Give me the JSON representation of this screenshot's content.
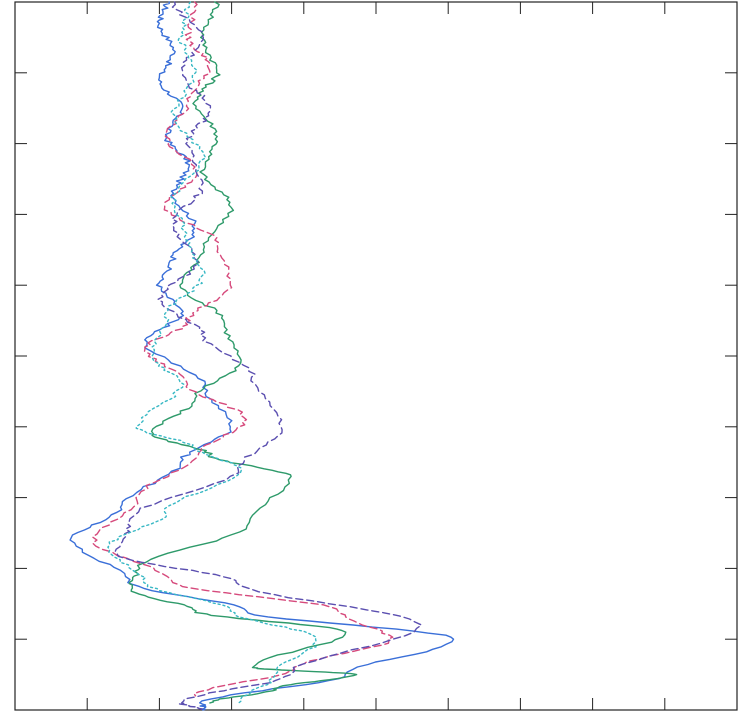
{
  "chart_data": {
    "type": "line",
    "orientation": "vertical-profile",
    "title": "",
    "xlabel": "",
    "ylabel": "",
    "xlim": [
      0,
      10
    ],
    "ylim": [
      0,
      10
    ],
    "grid": false,
    "legend": "none",
    "x_ticks": [
      1,
      2,
      3,
      4,
      5,
      6,
      7,
      8,
      9
    ],
    "y_ticks": [
      1,
      2,
      3,
      4,
      5,
      6,
      7,
      8,
      9
    ],
    "series": [
      {
        "color": "#3a6fd8",
        "dash": "solid",
        "points": [
          [
            2.1,
            10
          ],
          [
            2.0,
            9.7
          ],
          [
            2.2,
            9.3
          ],
          [
            2.0,
            8.9
          ],
          [
            2.3,
            8.5
          ],
          [
            2.1,
            8.1
          ],
          [
            2.4,
            7.7
          ],
          [
            2.2,
            7.3
          ],
          [
            2.5,
            6.8
          ],
          [
            2.2,
            6.4
          ],
          [
            2.0,
            6.0
          ],
          [
            2.3,
            5.6
          ],
          [
            1.8,
            5.2
          ],
          [
            2.6,
            4.6
          ],
          [
            3.0,
            4.0
          ],
          [
            2.3,
            3.5
          ],
          [
            1.5,
            2.9
          ],
          [
            0.8,
            2.4
          ],
          [
            1.6,
            1.8
          ],
          [
            3.2,
            1.4
          ],
          [
            6.1,
            1.0
          ],
          [
            4.6,
            0.5
          ],
          [
            2.6,
            0.1
          ],
          [
            2.6,
            0
          ]
        ]
      },
      {
        "color": "#2e9a6a",
        "dash": "solid",
        "points": [
          [
            2.8,
            10
          ],
          [
            2.6,
            9.5
          ],
          [
            2.8,
            9.0
          ],
          [
            2.5,
            8.6
          ],
          [
            2.8,
            8.1
          ],
          [
            2.6,
            7.6
          ],
          [
            3.0,
            7.1
          ],
          [
            2.6,
            6.5
          ],
          [
            2.3,
            6.0
          ],
          [
            2.9,
            5.5
          ],
          [
            3.1,
            4.9
          ],
          [
            2.5,
            4.4
          ],
          [
            1.9,
            3.9
          ],
          [
            2.7,
            3.6
          ],
          [
            3.8,
            3.3
          ],
          [
            3.2,
            2.6
          ],
          [
            1.7,
            2.0
          ],
          [
            1.6,
            1.7
          ],
          [
            2.5,
            1.4
          ],
          [
            4.6,
            1.1
          ],
          [
            3.3,
            0.6
          ],
          [
            4.7,
            0.5
          ],
          [
            3.6,
            0.3
          ],
          [
            2.7,
            0.1
          ]
        ]
      },
      {
        "color": "#d64a7c",
        "dash": "dashed",
        "points": [
          [
            2.5,
            10
          ],
          [
            2.4,
            9.5
          ],
          [
            2.7,
            9.1
          ],
          [
            2.4,
            8.6
          ],
          [
            2.1,
            8.1
          ],
          [
            2.5,
            7.6
          ],
          [
            2.1,
            7.1
          ],
          [
            2.8,
            6.6
          ],
          [
            3.0,
            6.0
          ],
          [
            2.4,
            5.5
          ],
          [
            1.8,
            5.1
          ],
          [
            2.4,
            4.6
          ],
          [
            3.2,
            4.1
          ],
          [
            2.5,
            3.6
          ],
          [
            1.7,
            3.0
          ],
          [
            1.1,
            2.4
          ],
          [
            2.2,
            1.8
          ],
          [
            4.5,
            1.4
          ],
          [
            5.2,
            1.0
          ],
          [
            3.9,
            0.6
          ],
          [
            2.5,
            0.2
          ]
        ]
      },
      {
        "color": "#5b4fb0",
        "dash": "dashed",
        "points": [
          [
            2.2,
            10
          ],
          [
            2.6,
            9.5
          ],
          [
            2.3,
            9.0
          ],
          [
            2.7,
            8.5
          ],
          [
            2.4,
            8.0
          ],
          [
            2.6,
            7.4
          ],
          [
            2.2,
            6.9
          ],
          [
            2.5,
            6.3
          ],
          [
            2.0,
            5.8
          ],
          [
            2.6,
            5.3
          ],
          [
            3.3,
            4.7
          ],
          [
            3.7,
            4.0
          ],
          [
            3.1,
            3.4
          ],
          [
            1.6,
            2.7
          ],
          [
            1.4,
            2.2
          ],
          [
            3.1,
            1.8
          ],
          [
            5.6,
            1.2
          ],
          [
            3.8,
            0.5
          ],
          [
            2.3,
            0.1
          ],
          [
            2.6,
            0
          ]
        ]
      },
      {
        "color": "#38b8c4",
        "dash": "dotted",
        "points": [
          [
            2.4,
            10
          ],
          [
            2.3,
            9.5
          ],
          [
            2.5,
            9.0
          ],
          [
            2.2,
            8.4
          ],
          [
            2.6,
            7.8
          ],
          [
            2.2,
            7.2
          ],
          [
            2.4,
            6.6
          ],
          [
            2.6,
            6.1
          ],
          [
            2.1,
            5.6
          ],
          [
            1.9,
            5.0
          ],
          [
            2.3,
            4.6
          ],
          [
            1.7,
            4.0
          ],
          [
            2.5,
            3.7
          ],
          [
            3.1,
            3.4
          ],
          [
            2.1,
            2.8
          ],
          [
            1.3,
            2.3
          ],
          [
            1.8,
            1.8
          ],
          [
            3.0,
            1.4
          ],
          [
            4.2,
            1.0
          ],
          [
            3.6,
            0.5
          ],
          [
            3.1,
            0.1
          ]
        ]
      }
    ]
  }
}
